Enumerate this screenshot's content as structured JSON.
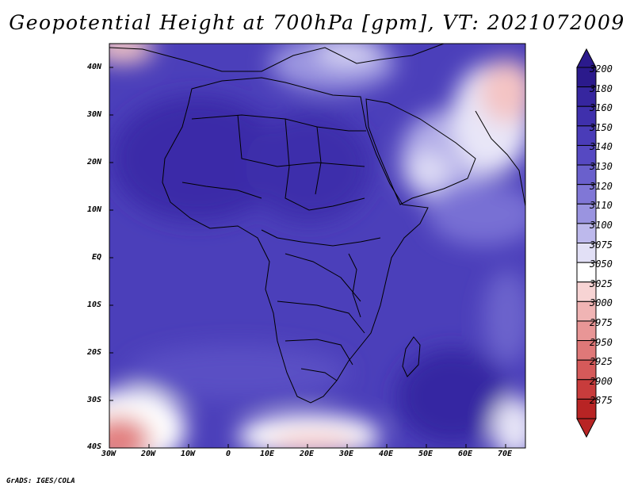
{
  "title": "Geopotential Height at 700hPa [gpm], VT: 2021072009",
  "map": {
    "lat_labels": [
      "40N",
      "30N",
      "20N",
      "10N",
      "EQ",
      "10S",
      "20S",
      "30S",
      "40S"
    ],
    "lon_labels": [
      "30W",
      "20W",
      "10W",
      "0",
      "10E",
      "20E",
      "30E",
      "40E",
      "50E",
      "60E",
      "70E"
    ]
  },
  "colorbar": {
    "levels": [
      "3200",
      "3180",
      "3160",
      "3150",
      "3140",
      "3130",
      "3120",
      "3110",
      "3100",
      "3075",
      "3050",
      "3025",
      "3000",
      "2975",
      "2950",
      "2925",
      "2900",
      "2875"
    ],
    "colors": [
      "#2b1a8c",
      "#36269f",
      "#3f30ac",
      "#4a3cb8",
      "#5649c2",
      "#6a60cc",
      "#8077d6",
      "#9a94e0",
      "#bdb9ec",
      "#e2e0f6",
      "#ffffff",
      "#f7d4d4",
      "#f0b4b4",
      "#e89696",
      "#df7878",
      "#d55a5a",
      "#c83c3c",
      "#b82424"
    ]
  },
  "footer": "GrADS: IGES/COLA"
}
